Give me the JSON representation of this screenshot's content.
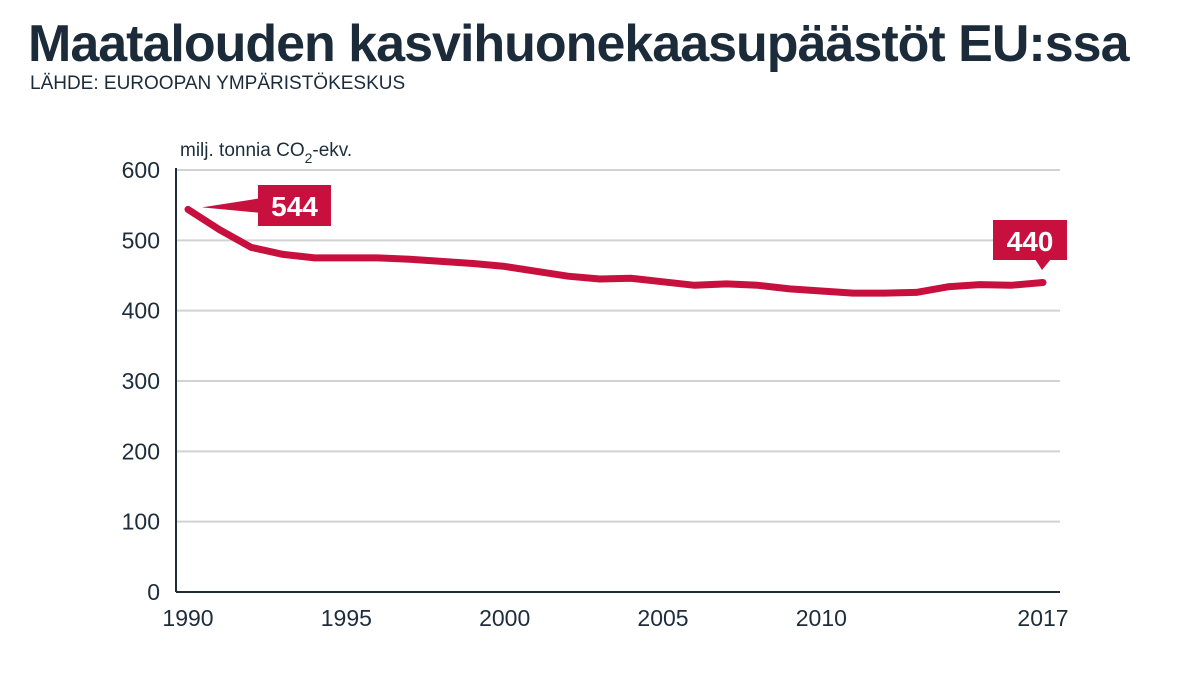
{
  "header": {
    "title": "Maatalouden kasvihuonekaasupäästöt EU:ssa",
    "source": "LÄHDE: EUROOPAN YMPÄRISTÖKESKUS"
  },
  "chart_data": {
    "type": "line",
    "title": "Maatalouden kasvihuonekaasupäästöt EU:ssa",
    "ylabel": {
      "prefix": "milj. tonnia CO",
      "subscript": "2",
      "suffix": "-ekv."
    },
    "xlabel": "",
    "ylim": [
      0,
      600
    ],
    "xlim": [
      1990,
      2017
    ],
    "yticks": [
      "0",
      "100",
      "200",
      "300",
      "400",
      "500",
      "600"
    ],
    "xticks": [
      {
        "x": 1990,
        "label": "1990"
      },
      {
        "x": 1995,
        "label": "1995"
      },
      {
        "x": 2000,
        "label": "2000"
      },
      {
        "x": 2005,
        "label": "2005"
      },
      {
        "x": 2010,
        "label": "2010"
      },
      {
        "x": 2017,
        "label": "2017"
      }
    ],
    "grid": "horizontal",
    "line_color": "#c8103e",
    "series": [
      {
        "x": [
          1990,
          1991,
          1992,
          1993,
          1994,
          1995,
          1996,
          1997,
          1998,
          1999,
          2000,
          2001,
          2002,
          2003,
          2004,
          2005,
          2006,
          2007,
          2008,
          2009,
          2010,
          2011,
          2012,
          2013,
          2014,
          2015,
          2016,
          2017
        ],
        "values": [
          544,
          515,
          490,
          480,
          475,
          475,
          475,
          473,
          470,
          467,
          463,
          456,
          449,
          445,
          446,
          441,
          436,
          438,
          436,
          431,
          428,
          425,
          425,
          426,
          434,
          437,
          436,
          440
        ]
      }
    ],
    "annotations": [
      {
        "x": 1990,
        "y": 544,
        "label": "544"
      },
      {
        "x": 2017,
        "y": 440,
        "label": "440"
      }
    ]
  }
}
